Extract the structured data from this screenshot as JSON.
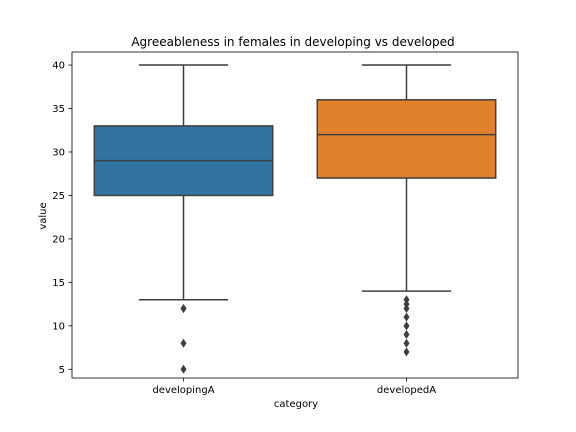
{
  "chart_data": {
    "type": "box",
    "title": "Agreeableness in females in developing vs developed",
    "xlabel": "category",
    "ylabel": "value",
    "ylim": [
      4,
      41.5
    ],
    "yticks": [
      5,
      10,
      15,
      20,
      25,
      30,
      35,
      40
    ],
    "grid": false,
    "categories": [
      "developingA",
      "developedA"
    ],
    "boxes": [
      {
        "category": "developingA",
        "color": "#3274a1",
        "whisker_low": 13,
        "q1": 25,
        "median": 29,
        "q3": 33,
        "whisker_high": 40,
        "outliers": [
          12,
          12,
          8,
          5
        ]
      },
      {
        "category": "developedA",
        "color": "#e1812c",
        "whisker_low": 14,
        "q1": 27,
        "median": 32,
        "q3": 36,
        "whisker_high": 40,
        "outliers": [
          13,
          12.5,
          12,
          11,
          10,
          9,
          8,
          7
        ]
      }
    ]
  }
}
